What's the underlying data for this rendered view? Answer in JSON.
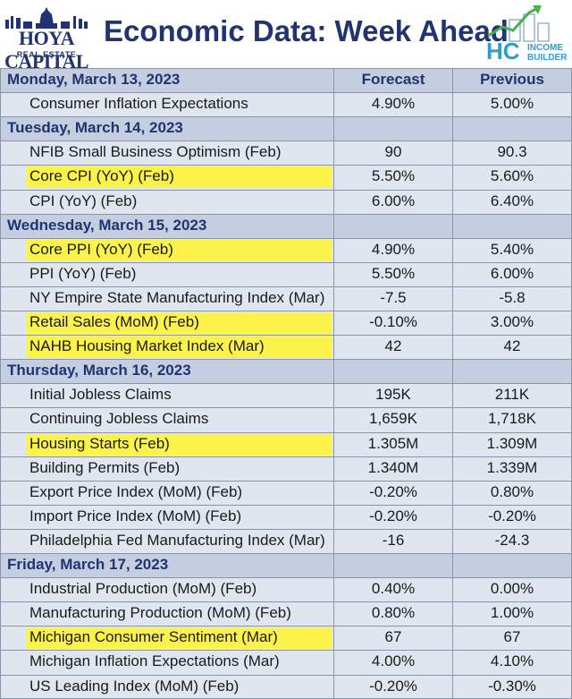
{
  "header": {
    "brand_left": "HOYA CAPITAL",
    "brand_left_sub": "REAL ESTATE",
    "title": "Economic Data: Week Ahead",
    "brand_right_letters": "HC",
    "brand_right_line1": "INCOME",
    "brand_right_line2": "BUILDER"
  },
  "columns": {
    "forecast": "Forecast",
    "previous": "Previous"
  },
  "rows": [
    {
      "type": "date",
      "label": "Monday, March 13, 2023",
      "show_headers": true
    },
    {
      "type": "item",
      "label": "Consumer Inflation Expectations",
      "forecast": "4.90%",
      "previous": "5.00%",
      "highlight": false
    },
    {
      "type": "date",
      "label": "Tuesday, March 14, 2023"
    },
    {
      "type": "item",
      "label": "NFIB Small Business Optimism (Feb)",
      "forecast": "90",
      "previous": "90.3",
      "highlight": false
    },
    {
      "type": "item",
      "label": "Core CPI (YoY) (Feb)",
      "forecast": "5.50%",
      "previous": "5.60%",
      "highlight": true
    },
    {
      "type": "item",
      "label": "CPI (YoY) (Feb)",
      "forecast": "6.00%",
      "previous": "6.40%",
      "highlight": false
    },
    {
      "type": "date",
      "label": "Wednesday, March 15, 2023"
    },
    {
      "type": "item",
      "label": "Core PPI (YoY) (Feb)",
      "forecast": "4.90%",
      "previous": "5.40%",
      "highlight": true
    },
    {
      "type": "item",
      "label": "PPI (YoY) (Feb)",
      "forecast": "5.50%",
      "previous": "6.00%",
      "highlight": false
    },
    {
      "type": "item",
      "label": "NY Empire State Manufacturing Index (Mar)",
      "forecast": "-7.5",
      "previous": "-5.8",
      "highlight": false
    },
    {
      "type": "item",
      "label": "Retail Sales (MoM) (Feb)",
      "forecast": "-0.10%",
      "previous": "3.00%",
      "highlight": true
    },
    {
      "type": "item",
      "label": "NAHB Housing Market Index (Mar)",
      "forecast": "42",
      "previous": "42",
      "highlight": true
    },
    {
      "type": "date",
      "label": "Thursday, March 16, 2023"
    },
    {
      "type": "item",
      "label": "Initial Jobless Claims",
      "forecast": "195K",
      "previous": "211K",
      "highlight": false
    },
    {
      "type": "item",
      "label": "Continuing Jobless Claims",
      "forecast": "1,659K",
      "previous": "1,718K",
      "highlight": false
    },
    {
      "type": "item",
      "label": "Housing Starts (Feb)",
      "forecast": "1.305M",
      "previous": "1.309M",
      "highlight": true
    },
    {
      "type": "item",
      "label": "Building Permits (Feb)",
      "forecast": "1.340M",
      "previous": "1.339M",
      "highlight": false
    },
    {
      "type": "item",
      "label": "Export Price Index (MoM) (Feb)",
      "forecast": "-0.20%",
      "previous": "0.80%",
      "highlight": false
    },
    {
      "type": "item",
      "label": "Import Price Index (MoM) (Feb)",
      "forecast": "-0.20%",
      "previous": "-0.20%",
      "highlight": false
    },
    {
      "type": "item",
      "label": "Philadelphia Fed Manufacturing Index (Mar)",
      "forecast": "-16",
      "previous": "-24.3",
      "highlight": false
    },
    {
      "type": "date",
      "label": "Friday, March 17, 2023"
    },
    {
      "type": "item",
      "label": "Industrial Production (MoM) (Feb)",
      "forecast": "0.40%",
      "previous": "0.00%",
      "highlight": false
    },
    {
      "type": "item",
      "label": "Manufacturing Production (MoM) (Feb)",
      "forecast": "0.80%",
      "previous": "1.00%",
      "highlight": false
    },
    {
      "type": "item",
      "label": "Michigan Consumer Sentiment (Mar)",
      "forecast": "67",
      "previous": "67",
      "highlight": true
    },
    {
      "type": "item",
      "label": "Michigan Inflation Expectations (Mar)",
      "forecast": "4.00%",
      "previous": "4.10%",
      "highlight": false
    },
    {
      "type": "item",
      "label": "US Leading Index (MoM) (Feb)",
      "forecast": "-0.20%",
      "previous": "-0.30%",
      "highlight": false
    }
  ]
}
